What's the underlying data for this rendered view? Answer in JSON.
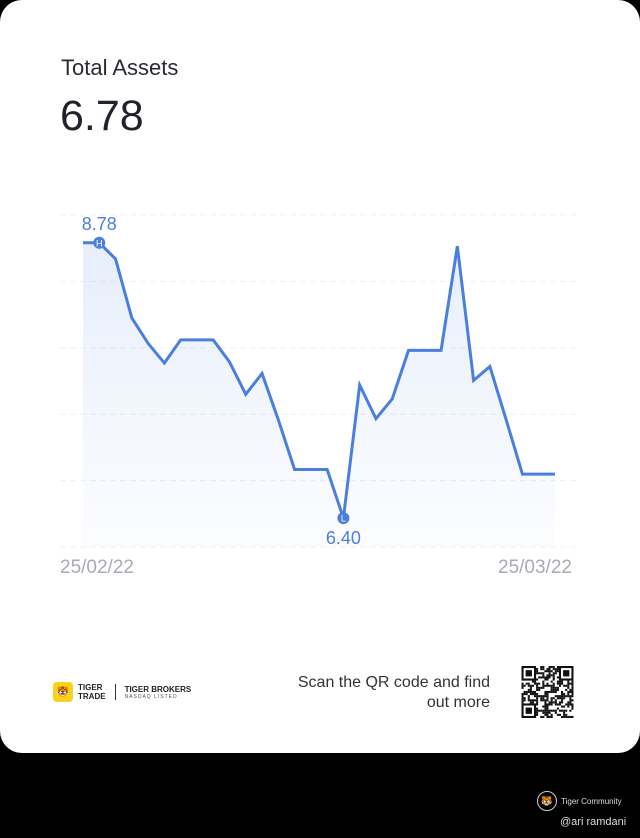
{
  "header": {
    "title": "Total Assets",
    "value": "6.78"
  },
  "chart_data": {
    "type": "area",
    "x_start_label": "25/02/22",
    "x_end_label": "25/03/22",
    "values": [
      8.78,
      8.78,
      8.64,
      8.13,
      7.91,
      7.74,
      7.94,
      7.94,
      7.94,
      7.75,
      7.47,
      7.65,
      7.25,
      6.82,
      6.82,
      6.82,
      6.4,
      7.55,
      7.26,
      7.43,
      7.85,
      7.85,
      7.85,
      8.75,
      7.59,
      7.71,
      7.25,
      6.78,
      6.78,
      6.78
    ],
    "ylim": [
      6.15,
      9.02
    ],
    "high": {
      "label": "8.78",
      "marker": "H",
      "index": 1
    },
    "low": {
      "label": "6.40",
      "marker": "L",
      "index": 16
    },
    "grid": true,
    "line_color": "#4a7fde"
  },
  "footer": {
    "logo_line1": "TIGER",
    "logo_line2": "TRADE",
    "logo_brand": "TIGER BROKERS",
    "logo_sub": "NASDAQ LISTED",
    "scan_text": "Scan the QR code and find out more"
  },
  "watermark": {
    "brand": "Tiger Community",
    "handle": "@ari ramdani"
  }
}
